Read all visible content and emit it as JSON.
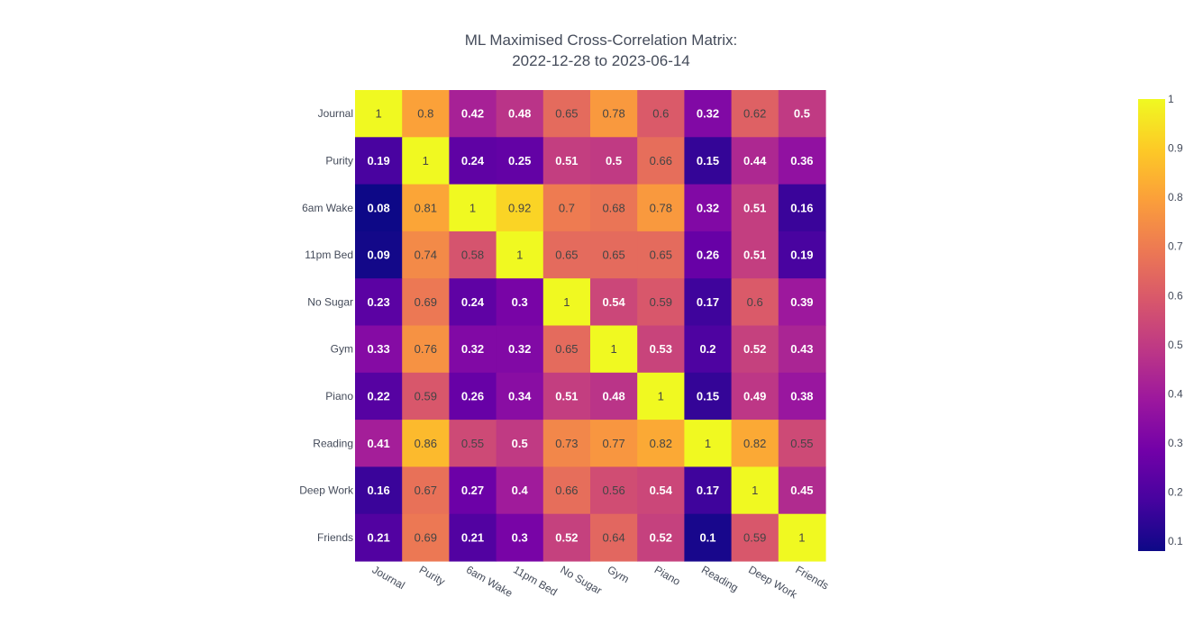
{
  "chart_data": {
    "type": "heatmap",
    "title_lines": [
      "ML Maximised Cross-Correlation Matrix:",
      "2022-12-28 to 2023-06-14"
    ],
    "x_labels": [
      "Journal",
      "Purity",
      "6am Wake",
      "11pm Bed",
      "No Sugar",
      "Gym",
      "Piano",
      "Reading",
      "Deep Work",
      "Friends"
    ],
    "y_labels": [
      "Journal",
      "Purity",
      "6am Wake",
      "11pm Bed",
      "No Sugar",
      "Gym",
      "Piano",
      "Reading",
      "Deep Work",
      "Friends"
    ],
    "z": [
      [
        1,
        0.8,
        0.42,
        0.48,
        0.65,
        0.78,
        0.6,
        0.32,
        0.62,
        0.5
      ],
      [
        0.19,
        1,
        0.24,
        0.25,
        0.51,
        0.5,
        0.66,
        0.15,
        0.44,
        0.36
      ],
      [
        0.08,
        0.81,
        1,
        0.92,
        0.7,
        0.68,
        0.78,
        0.32,
        0.51,
        0.16
      ],
      [
        0.09,
        0.74,
        0.58,
        1,
        0.65,
        0.65,
        0.65,
        0.26,
        0.51,
        0.19
      ],
      [
        0.23,
        0.69,
        0.24,
        0.3,
        1,
        0.54,
        0.59,
        0.17,
        0.6,
        0.39
      ],
      [
        0.33,
        0.76,
        0.32,
        0.32,
        0.65,
        1,
        0.53,
        0.2,
        0.52,
        0.43
      ],
      [
        0.22,
        0.59,
        0.26,
        0.34,
        0.51,
        0.48,
        1,
        0.15,
        0.49,
        0.38
      ],
      [
        0.41,
        0.86,
        0.55,
        0.5,
        0.73,
        0.77,
        0.82,
        1,
        0.82,
        0.55
      ],
      [
        0.16,
        0.67,
        0.27,
        0.4,
        0.66,
        0.56,
        0.54,
        0.17,
        1,
        0.45
      ],
      [
        0.21,
        0.69,
        0.21,
        0.3,
        0.52,
        0.64,
        0.52,
        0.1,
        0.59,
        1
      ]
    ],
    "zmin": 0.08,
    "zmax": 1,
    "colorscale": "Plasma",
    "colorscale_stops": [
      "#0d0887",
      "#46039f",
      "#7201a8",
      "#9c179e",
      "#bd3786",
      "#d8576b",
      "#ed7953",
      "#fb9f3a",
      "#fdca26",
      "#f0f921"
    ],
    "colorbar_ticks": [
      0.1,
      0.2,
      0.3,
      0.4,
      0.5,
      0.6,
      0.7,
      0.8,
      0.9,
      1
    ],
    "text_color_dark": "#444444",
    "text_color_light": "#ffffff"
  }
}
